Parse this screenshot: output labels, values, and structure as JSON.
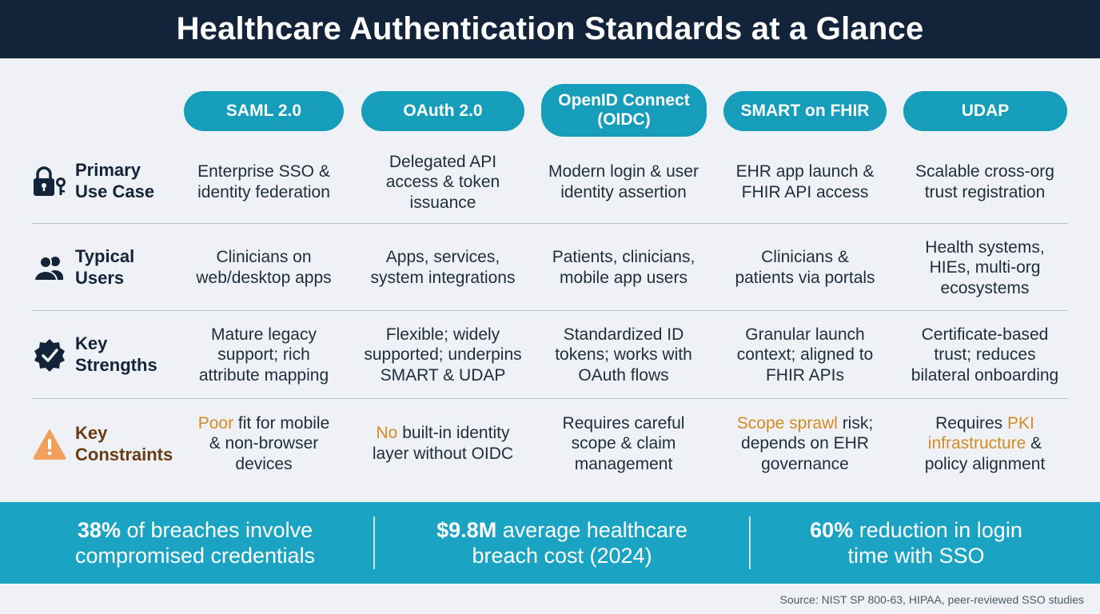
{
  "title": "Healthcare Authentication Standards at a Glance",
  "standards": [
    {
      "label": "SAML 2.0"
    },
    {
      "label": "OAuth 2.0"
    },
    {
      "label": "OpenID Connect\n(OIDC)"
    },
    {
      "label": "SMART on FHIR"
    },
    {
      "label": "UDAP"
    }
  ],
  "rows": [
    {
      "label": "Primary\nUse Case",
      "icon": "lock-key-icon",
      "cells": [
        "Enterprise SSO &\nidentity federation",
        "Delegated API\naccess & token\nissuance",
        "Modern login & user\nidentity assertion",
        "EHR app launch &\nFHIR API access",
        "Scalable cross-org\ntrust registration"
      ]
    },
    {
      "label": "Typical\nUsers",
      "icon": "users-icon",
      "cells": [
        "Clinicians on\nweb/desktop apps",
        "Apps, services,\nsystem integrations",
        "Patients, clinicians,\nmobile app users",
        "Clinicians &\npatients via portals",
        "Health systems,\nHIEs, multi-org\necosystems"
      ]
    },
    {
      "label": "Key\nStrengths",
      "icon": "badge-check-icon",
      "cells": [
        "Mature legacy\nsupport; rich\nattribute mapping",
        "Flexible; widely\nsupported; underpins\nSMART & UDAP",
        "Standardized ID\ntokens; works with\nOAuth flows",
        "Granular launch\ncontext; aligned to\nFHIR APIs",
        "Certificate-based\ntrust; reduces\nbilateral onboarding"
      ]
    },
    {
      "label": "Key\nConstraints",
      "icon": "warning-icon",
      "cells": [
        {
          "hl": "Poor",
          "rest": " fit for mobile\n& non-browser\ndevices"
        },
        {
          "hl": "No",
          "rest": " built-in identity\nlayer without OIDC"
        },
        {
          "pre": "Requires careful\nscope & claim\nmanagement"
        },
        {
          "hl": "Scope sprawl",
          "rest": " risk;\ndepends on EHR\ngovernance"
        },
        {
          "pre": "Requires ",
          "hl": "PKI\ninfrastructure",
          "rest": " &\npolicy alignment"
        }
      ]
    }
  ],
  "stats": [
    {
      "bold": "38%",
      "rest": " of breaches involve\ncompromised credentials"
    },
    {
      "bold": "$9.8M",
      "rest": " average healthcare\nbreach cost (2024)"
    },
    {
      "bold": "60%",
      "rest": " reduction in login\ntime with SSO"
    }
  ],
  "source": "Source: NIST SP 800-63, HIPAA, peer-reviewed SSO studies",
  "colors": {
    "header_bg": "#13233a",
    "accent": "#159dba",
    "stats_bg": "#1aa3c3",
    "highlight": "#d58a23",
    "warning": "#f0a05a"
  }
}
